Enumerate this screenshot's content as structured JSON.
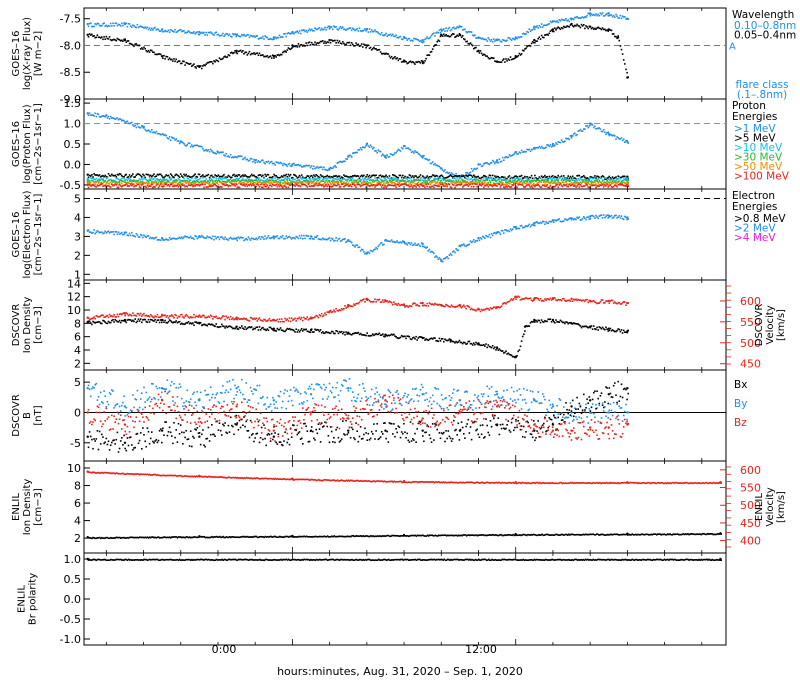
{
  "figure": {
    "x_axis_title": "hours:minutes, Aug. 31, 2020 – Sep.  1, 2020",
    "x_tick_labels": [
      "0:00",
      "12:00"
    ]
  },
  "colors": {
    "blue": "#1f8fe8",
    "black": "#000000",
    "red": "#e8231b",
    "cyan": "#11c2e8",
    "green": "#2eb82e",
    "orange": "#f08c00",
    "magenta": "#e81fd8"
  },
  "chart_data": [
    {
      "type": "scatter",
      "id": "xray",
      "ylabel_lines": [
        "GOES–16",
        "log(X-ray Flux)",
        "[W m−2]"
      ],
      "yticks": [
        "-7.5",
        "-8.0",
        "-8.5",
        "-9.0"
      ],
      "ylim": [
        -9.0,
        -7.3
      ],
      "legend_title": "Wavelength",
      "legend": [
        {
          "label": "0.10–0.8nm",
          "color": "#1f8fe8"
        },
        {
          "label": "0.05–0.4nm",
          "color": "#000000"
        }
      ],
      "threshold": {
        "value": -8.0,
        "label": "A",
        "color": "#1f8fe8"
      },
      "note_lines": [
        "flare class",
        "(.1–.8nm)"
      ],
      "series": [
        {
          "color": "#1f8fe8",
          "x": [
            -11,
            -9,
            -7,
            -5,
            -3,
            -1,
            0,
            2,
            4,
            6,
            7,
            8,
            9,
            10,
            11,
            12,
            13,
            14,
            15,
            16,
            17,
            18
          ],
          "y": [
            -7.6,
            -7.6,
            -7.7,
            -7.75,
            -7.8,
            -7.85,
            -7.75,
            -7.65,
            -7.7,
            -7.85,
            -7.9,
            -7.7,
            -7.65,
            -7.85,
            -7.9,
            -7.85,
            -7.65,
            -7.55,
            -7.5,
            -7.4,
            -7.4,
            -7.5
          ]
        },
        {
          "color": "#000000",
          "x": [
            -11,
            -9,
            -7,
            -5,
            -3,
            -1,
            0,
            2,
            4,
            6,
            7,
            8,
            9,
            10,
            11,
            12,
            13,
            14,
            15,
            16,
            17,
            17.5,
            18
          ],
          "y": [
            -7.8,
            -7.9,
            -8.2,
            -8.4,
            -8.1,
            -8.2,
            -8.0,
            -7.9,
            -8.0,
            -8.3,
            -8.3,
            -7.8,
            -7.8,
            -8.1,
            -8.3,
            -8.2,
            -7.9,
            -7.7,
            -7.6,
            -7.65,
            -7.7,
            -7.85,
            -8.6
          ]
        }
      ]
    },
    {
      "type": "scatter",
      "id": "proton",
      "ylabel_lines": [
        "GOES–16",
        "log(Proton Flux)",
        "[cm−2s−1sr−1]"
      ],
      "yticks": [
        "1.5",
        "1.0",
        "0.5",
        "0.0",
        "-0.5"
      ],
      "ylim": [
        -0.6,
        1.6
      ],
      "legend_title": "Proton",
      "legend_subtitle": "Energies",
      "legend": [
        {
          "label": ">1 MeV",
          "color": "#1f8fe8"
        },
        {
          "label": ">5 MeV",
          "color": "#000000"
        },
        {
          "label": ">10 MeV",
          "color": "#11c2e8"
        },
        {
          "label": ">30 MeV",
          "color": "#2eb82e"
        },
        {
          "label": ">50 MeV",
          "color": "#f08c00"
        },
        {
          "label": ">100 MeV",
          "color": "#e8231b"
        }
      ],
      "threshold": {
        "value": 1.0,
        "label": "",
        "color": "#11c2e8"
      },
      "series": [
        {
          "color": "#1f8fe8",
          "x": [
            -11,
            -10,
            -8,
            -6,
            -4,
            -2,
            0,
            2,
            3,
            4,
            5,
            6,
            7,
            8,
            9,
            10,
            11,
            12,
            13,
            14,
            15,
            16,
            17,
            18
          ],
          "y": [
            1.25,
            1.2,
            0.9,
            0.55,
            0.3,
            0.1,
            0.0,
            -0.1,
            0.2,
            0.5,
            0.2,
            0.45,
            0.2,
            -0.1,
            -0.3,
            0.0,
            0.1,
            0.3,
            0.4,
            0.5,
            0.7,
            1.0,
            0.75,
            0.55
          ]
        },
        {
          "color": "#000000",
          "x": [
            -11,
            18
          ],
          "y": [
            -0.25,
            -0.3
          ]
        },
        {
          "color": "#11c2e8",
          "x": [
            -11,
            18
          ],
          "y": [
            -0.35,
            -0.35
          ]
        },
        {
          "color": "#2eb82e",
          "x": [
            -11,
            18
          ],
          "y": [
            -0.4,
            -0.4
          ]
        },
        {
          "color": "#f08c00",
          "x": [
            -11,
            18
          ],
          "y": [
            -0.45,
            -0.45
          ]
        },
        {
          "color": "#e8231b",
          "x": [
            -11,
            18
          ],
          "y": [
            -0.5,
            -0.5
          ]
        }
      ]
    },
    {
      "type": "scatter",
      "id": "electron",
      "ylabel_lines": [
        "GOES–16",
        "log(Electron Flux)",
        "[cm−2s−1sr−1]"
      ],
      "yticks": [
        "5",
        "4",
        "3",
        "2",
        "1"
      ],
      "ylim": [
        0.7,
        5.5
      ],
      "legend_title": "Electron",
      "legend_subtitle": "Energies",
      "legend": [
        {
          "label": ">0.8 MeV",
          "color": "#000000"
        },
        {
          "label": ">2 MeV",
          "color": "#1f8fe8"
        },
        {
          "label": ">4 MeV",
          "color": "#e81fd8"
        }
      ],
      "threshold": {
        "value": 5.0,
        "label": "",
        "color": "#000000"
      },
      "series": [
        {
          "color": "#1f8fe8",
          "x": [
            -11,
            -9,
            -7,
            -5,
            -3,
            -1,
            1,
            3,
            4,
            5,
            6,
            7,
            8,
            9,
            10,
            11,
            12,
            13,
            14,
            15,
            16,
            17,
            18
          ],
          "y": [
            3.3,
            3.2,
            2.9,
            3.0,
            2.9,
            3.0,
            3.0,
            2.8,
            2.1,
            2.8,
            2.7,
            2.6,
            1.7,
            2.5,
            2.9,
            3.2,
            3.5,
            3.7,
            3.85,
            3.95,
            4.05,
            4.1,
            4.0
          ]
        }
      ]
    },
    {
      "type": "scatter",
      "id": "dscovr_density",
      "ylabel_lines": [
        "DSCOVR",
        "Ion Density",
        "[cm−3]"
      ],
      "yticks": [
        "14",
        "12",
        "10",
        "8",
        "6",
        "4",
        "2"
      ],
      "ylim": [
        1,
        14.5
      ],
      "right_ylabel_lines": [
        "DSCOVR",
        "Velocity",
        "[km/s]"
      ],
      "right_yticks": [
        "600",
        "550",
        "500",
        "450"
      ],
      "right_ylim": [
        435,
        650
      ],
      "series": [
        {
          "axis": "left",
          "color": "#000000",
          "x": [
            -11,
            -9,
            -7,
            -5,
            -3,
            -1,
            1,
            3,
            5,
            7,
            8.5,
            10,
            11,
            12,
            12.5,
            13,
            14,
            15,
            16,
            17,
            18
          ],
          "y": [
            8.2,
            8.5,
            8.5,
            8.0,
            7.5,
            7.2,
            7.0,
            6.6,
            6.3,
            5.8,
            5.5,
            5.0,
            4.3,
            3.0,
            7.5,
            8.5,
            8.5,
            8.0,
            7.5,
            7.2,
            6.8
          ]
        },
        {
          "axis": "right",
          "color": "#e8231b",
          "x": [
            -11,
            -9,
            -7,
            -5,
            -3,
            -1,
            1,
            2,
            3,
            4,
            5,
            6,
            7,
            8,
            9,
            10,
            11,
            12,
            13,
            14,
            15,
            16,
            17,
            18
          ],
          "y": [
            560,
            570,
            565,
            565,
            560,
            555,
            560,
            575,
            590,
            605,
            600,
            590,
            595,
            590,
            590,
            580,
            585,
            610,
            605,
            605,
            605,
            600,
            600,
            595
          ]
        }
      ]
    },
    {
      "type": "scatter",
      "id": "dscovr_b",
      "ylabel_lines": [
        "DSCOVR",
        "B",
        "[nT]"
      ],
      "yticks": [
        "5",
        "0",
        "-5"
      ],
      "ylim": [
        -8,
        7
      ],
      "zero_line": true,
      "legend": [
        {
          "label": "Bx",
          "color": "#000000"
        },
        {
          "label": "By",
          "color": "#1f8fe8"
        },
        {
          "label": "Bz",
          "color": "#e8231b"
        }
      ],
      "series": [
        {
          "color": "#1f8fe8",
          "x": [
            -11,
            -9,
            -7,
            -5,
            -3,
            -1,
            1,
            3,
            5,
            7,
            9,
            11,
            13,
            14,
            15,
            16,
            17,
            18
          ],
          "y": [
            4,
            1,
            4,
            2,
            4,
            2,
            3,
            4,
            2,
            3,
            2,
            3,
            2,
            1,
            0,
            0,
            0,
            0
          ]
        },
        {
          "color": "#000000",
          "x": [
            -11,
            -9,
            -7,
            -5,
            -3,
            -1,
            1,
            3,
            5,
            7,
            9,
            11,
            13,
            14,
            15,
            16,
            17,
            18
          ],
          "y": [
            -4,
            -5,
            -3,
            -4,
            -2,
            -4,
            -3,
            -3,
            -3,
            -3,
            -3,
            -2,
            -3,
            -2,
            1,
            2,
            3,
            4
          ]
        },
        {
          "color": "#e8231b",
          "x": [
            -11,
            -9,
            -7,
            -5,
            -3,
            -1,
            1,
            3,
            5,
            7,
            9,
            11,
            13,
            14,
            15,
            16,
            17,
            18
          ],
          "y": [
            0,
            -2,
            2,
            -1,
            1,
            -3,
            0,
            -1,
            2,
            -1,
            0,
            1,
            -2,
            -3,
            -3,
            -2.5,
            -2.5,
            -2
          ]
        }
      ]
    },
    {
      "type": "scatter",
      "id": "enlil_density",
      "ylabel_lines": [
        "ENLIL",
        "Ion Density",
        "[cm−3]"
      ],
      "yticks": [
        "10",
        "8",
        "6",
        "4",
        "2"
      ],
      "ylim": [
        0.3,
        10.8
      ],
      "right_ylabel_lines": [
        "ENLIL",
        "Velocity",
        "[km/s]"
      ],
      "right_yticks": [
        "600",
        "550",
        "500",
        "450",
        "400"
      ],
      "right_ylim": [
        365,
        625
      ],
      "series": [
        {
          "axis": "left",
          "color": "#000000",
          "x": [
            -11,
            -5,
            0,
            6,
            12,
            18,
            23
          ],
          "y": [
            2.1,
            2.2,
            2.25,
            2.35,
            2.45,
            2.5,
            2.55
          ]
        },
        {
          "axis": "right",
          "color": "#e8231b",
          "x": [
            -11,
            -5,
            0,
            6,
            12,
            18,
            23
          ],
          "y": [
            595,
            583,
            575,
            568,
            565,
            565,
            565
          ]
        }
      ]
    },
    {
      "type": "scatter",
      "id": "enlil_polarity",
      "ylabel_lines": [
        "ENLIL",
        "Br polarity"
      ],
      "yticks": [
        "1.0",
        "0.5",
        "0.0",
        "-0.5",
        "-1.0"
      ],
      "ylim": [
        -1.15,
        1.15
      ],
      "series": [
        {
          "color": "#000000",
          "x": [
            -11,
            23
          ],
          "y": [
            1.0,
            1.0
          ]
        }
      ]
    }
  ]
}
